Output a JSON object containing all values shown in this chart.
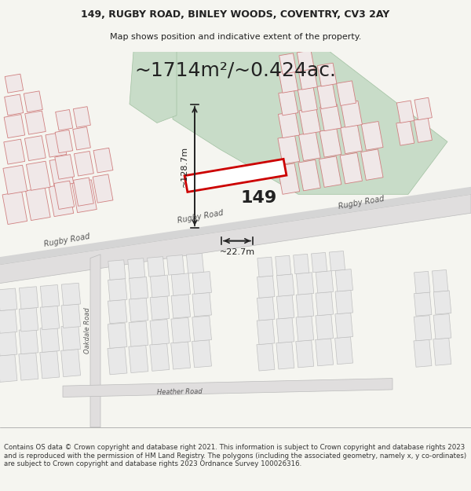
{
  "title_line1": "149, RUGBY ROAD, BINLEY WOODS, COVENTRY, CV3 2AY",
  "title_line2": "Map shows position and indicative extent of the property.",
  "area_label": "~1714m²/~0.424ac.",
  "property_number": "149",
  "dim_height": "~128.7m",
  "dim_width": "~22.7m",
  "footer_text": "Contains OS data © Crown copyright and database right 2021. This information is subject to Crown copyright and database rights 2023 and is reproduced with the permission of HM Land Registry. The polygons (including the associated geometry, namely x, y co-ordinates) are subject to Crown copyright and database rights 2023 Ordnance Survey 100026316.",
  "bg_color": "#f5f5f0",
  "map_bg": "#f0eeee",
  "road_color": "#e8c8c8",
  "road_fill": "#e8e0e0",
  "building_outline": "#d08080",
  "building_fill": "#f0e8e8",
  "property_outline": "#cc0000",
  "property_fill": "#ffffff",
  "green_area_color": "#c8dcc8",
  "dim_color": "#222222",
  "text_color": "#222222",
  "road_gray": "#cccccc",
  "title_fontsize": 9,
  "footer_fontsize": 6.5
}
